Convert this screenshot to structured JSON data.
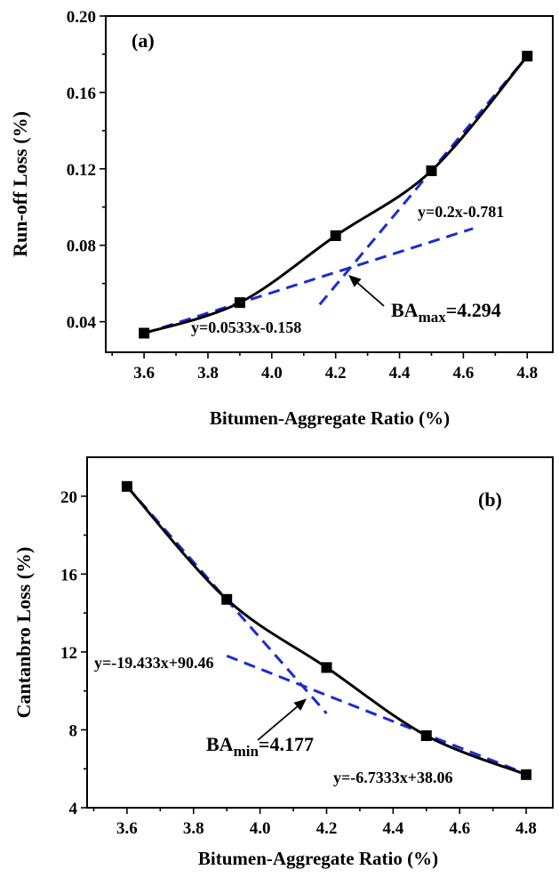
{
  "chart_data": [
    {
      "type": "line",
      "panel_label": "(a)",
      "xlabel": "Bitumen-Aggregate Ratio (%)",
      "ylabel": "Run-off Loss (%)",
      "xlim": [
        3.48,
        4.88
      ],
      "ylim": [
        0.024,
        0.2
      ],
      "x_ticks": [
        "3.6",
        "3.8",
        "4.0",
        "4.2",
        "4.4",
        "4.6",
        "4.8"
      ],
      "y_ticks": [
        "0.04",
        "0.08",
        "0.12",
        "0.16",
        "0.20"
      ],
      "series": [
        {
          "role": "measured",
          "style": "solid black line with square markers",
          "x": [
            3.6,
            3.9,
            4.2,
            4.5,
            4.8
          ],
          "y": [
            0.034,
            0.05,
            0.085,
            0.119,
            0.179
          ]
        }
      ],
      "fits": [
        {
          "style": "dashed blue",
          "equation": "y=0.0533x-0.158",
          "slope": 0.0533,
          "intercept": -0.158,
          "x_range": [
            3.6,
            4.63
          ]
        },
        {
          "style": "dashed blue",
          "equation": "y=0.2x-0.781",
          "slope": 0.2,
          "intercept": -0.781,
          "x_range": [
            4.15,
            4.8
          ]
        }
      ],
      "annotation": {
        "base": "BA",
        "subscript": "max",
        "value_text": "=4.294",
        "arrow_target": [
          4.24,
          0.0645
        ]
      },
      "grid": false,
      "legend": "none"
    },
    {
      "type": "line",
      "panel_label": "(b)",
      "xlabel": "Bitumen-Aggregate Ratio (%)",
      "ylabel": "Cantanbro Loss (%)",
      "xlim": [
        3.48,
        4.88
      ],
      "ylim": [
        4,
        22
      ],
      "x_ticks": [
        "3.6",
        "3.8",
        "4.0",
        "4.2",
        "4.4",
        "4.6",
        "4.8"
      ],
      "y_ticks": [
        "4",
        "8",
        "12",
        "16",
        "20"
      ],
      "series": [
        {
          "role": "measured",
          "style": "solid black line with square markers",
          "x": [
            3.6,
            3.9,
            4.2,
            4.5,
            4.8
          ],
          "y": [
            20.5,
            14.7,
            11.2,
            7.7,
            5.7
          ]
        }
      ],
      "fits": [
        {
          "style": "dashed blue",
          "equation": "y=-19.433x+90.46",
          "slope": -19.433,
          "intercept": 90.46,
          "x_range": [
            3.6,
            4.2
          ]
        },
        {
          "style": "dashed blue",
          "equation": "y=-6.7333x+38.06",
          "slope": -6.7333,
          "intercept": 38.06,
          "x_range": [
            3.9,
            4.8
          ]
        }
      ],
      "annotation": {
        "base": "BA",
        "subscript": "min",
        "value_text": "=4.177",
        "arrow_target": [
          4.14,
          9.6
        ]
      },
      "grid": false,
      "legend": "none"
    }
  ]
}
